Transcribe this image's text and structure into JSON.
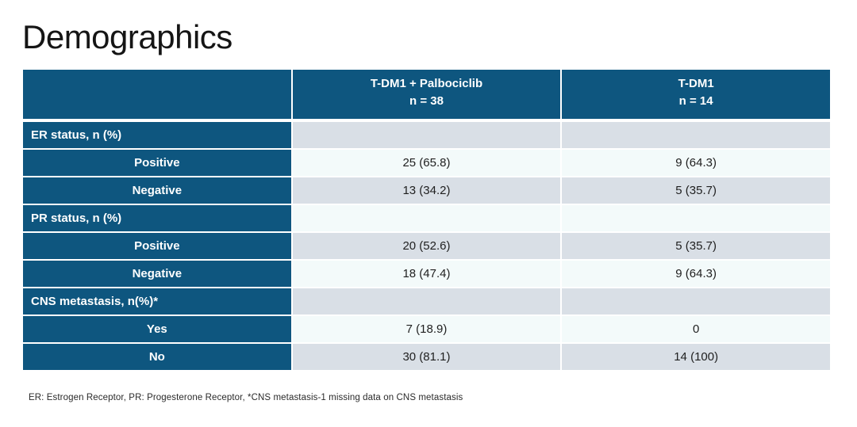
{
  "page": {
    "title": "Demographics"
  },
  "colors": {
    "header_blue": "#0E567F",
    "row_gray": "#D9DFE6",
    "row_light": "#F3FAFA"
  },
  "table": {
    "columns": [
      {
        "line1": "",
        "line2": ""
      },
      {
        "line1": "T-DM1 + Palbociclib",
        "line2": "n = 38"
      },
      {
        "line1": "T-DM1",
        "line2": "n = 14"
      }
    ],
    "rows": [
      {
        "type": "section",
        "label": "ER status, n (%)",
        "c1": "",
        "c2": ""
      },
      {
        "type": "sub",
        "label": "Positive",
        "c1": "25 (65.8)",
        "c2": "9 (64.3)"
      },
      {
        "type": "sub",
        "label": "Negative",
        "c1": "13 (34.2)",
        "c2": "5 (35.7)"
      },
      {
        "type": "section",
        "label": "PR status, n (%)",
        "c1": "",
        "c2": ""
      },
      {
        "type": "sub",
        "label": "Positive",
        "c1": "20 (52.6)",
        "c2": "5 (35.7)"
      },
      {
        "type": "sub",
        "label": "Negative",
        "c1": "18 (47.4)",
        "c2": "9 (64.3)"
      },
      {
        "type": "section",
        "label": "CNS metastasis, n(%)*",
        "c1": "",
        "c2": ""
      },
      {
        "type": "sub",
        "label": "Yes",
        "c1": "7 (18.9)",
        "c2": "0"
      },
      {
        "type": "sub",
        "label": "No",
        "c1": "30 (81.1)",
        "c2": "14 (100)"
      }
    ]
  },
  "footnote": "ER: Estrogen Receptor, PR: Progesterone Receptor, *CNS metastasis-1 missing data on CNS metastasis"
}
